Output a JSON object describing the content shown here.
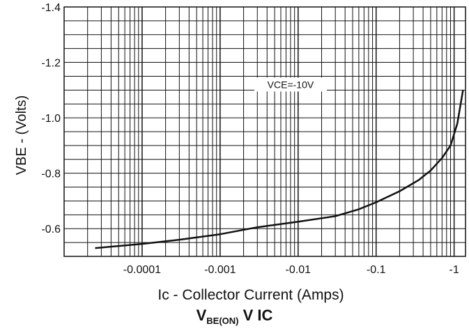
{
  "chart_data": {
    "type": "line",
    "title": "",
    "caption": {
      "main": "V",
      "sub": "BE(ON)",
      "rest": " V IC"
    },
    "xlabel": "Ic - Collector Current (Amps)",
    "ylabel": "VBE - (Volts)",
    "annotation": "VCE=-10V",
    "x_scale": "log",
    "xlim": [
      -1e-05,
      -1.4
    ],
    "ylim": [
      -0.5,
      -1.4
    ],
    "grid": true,
    "x_ticks": [
      "-0.0001",
      "-0.001",
      "-0.01",
      "-0.1",
      "-1"
    ],
    "y_ticks": [
      "-0.6",
      "-0.8",
      "-1.0",
      "-1.2",
      "-1.4"
    ],
    "series": [
      {
        "name": "VCE=-10V",
        "x": [
          -2.5e-05,
          -0.0001,
          -0.0003,
          -0.001,
          -0.003,
          -0.01,
          -0.03,
          -0.06,
          -0.1,
          -0.2,
          -0.35,
          -0.5,
          -0.7,
          -0.9,
          -1.1,
          -1.3
        ],
        "y": [
          -0.53,
          -0.545,
          -0.56,
          -0.58,
          -0.605,
          -0.625,
          -0.645,
          -0.67,
          -0.695,
          -0.735,
          -0.775,
          -0.81,
          -0.855,
          -0.9,
          -0.98,
          -1.1
        ]
      }
    ],
    "line_color": "#111111"
  }
}
